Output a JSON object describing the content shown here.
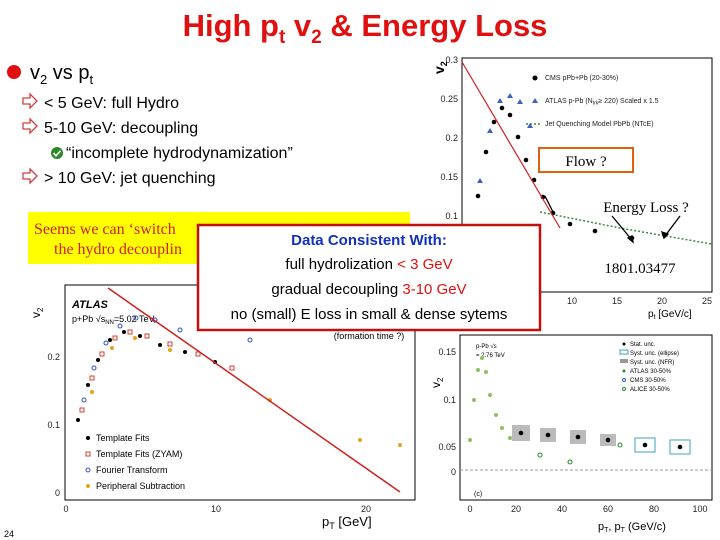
{
  "slide": {
    "title": {
      "parts": [
        "High p",
        "t",
        " v",
        "2",
        " & Energy Loss"
      ]
    },
    "bullet": {
      "parts": [
        "v",
        "2",
        " vs p",
        "t"
      ]
    },
    "subbullets": [
      "< 5 GeV: full Hydro",
      "5-10 GeV: decoupling",
      "> 10 GeV: jet quenching"
    ],
    "check_item": "“incomplete hydrodynamization”",
    "yellow_note": [
      "Seems we can ‘switch",
      "the hydro decouplin"
    ],
    "red_box": {
      "heading": "Data Consistent With:",
      "line1": {
        "text": "full hydrolization ",
        "highlight": "< 3 GeV"
      },
      "line2": {
        "text": "gradual decoupling ",
        "highlight": "3-10 GeV"
      },
      "line3": "no (small) E loss in small & dense sytems",
      "note": "(formation time ?)"
    },
    "flow_label": "Flow ?",
    "energy_loss_label": "Energy Loss ?",
    "reference": "1801.03477",
    "page_number": "24",
    "plot_top_right": {
      "y_label": "v",
      "y_label_sub": "2",
      "yticks": [
        "0.3",
        "0.25",
        "0.2",
        "0.15",
        "0.1"
      ],
      "xticks": [
        "10",
        "15",
        "20",
        "25"
      ],
      "x_label": "p",
      "x_label_sub": "t",
      "x_label_unit": " [GeV/c]",
      "legend": [
        "CMS pPb+Pb (20-30%)",
        "ATLAS p-Pb (N",
        "trk",
        "≥ 220) Scaled x 1.5",
        "Jet Quenching Model PbPb (NTcE)"
      ]
    },
    "plot_bottom_left": {
      "experiment": "ATLAS",
      "system": "p+Pb √s",
      "system_sub": "NN",
      "system_rest": "=5.02 TeV,",
      "xticks": [
        "0",
        "10",
        "20"
      ],
      "yticks": [
        "0.2",
        "0.1",
        "0"
      ],
      "x_label": "p",
      "x_label_sub": "T",
      "x_label_unit": " [GeV]",
      "y_label": "v",
      "y_label_sub": "2",
      "legend": [
        "Template Fits",
        "Template Fits (ZYAM)",
        "Fourier Transform",
        "Peripheral Subtraction"
      ]
    },
    "plot_bottom_right": {
      "y_label": "v",
      "y_label_sub": "2",
      "yticks": [
        "0.15",
        "0.1",
        "0.05",
        "0"
      ],
      "xticks": [
        "0",
        "20",
        "40",
        "60",
        "80",
        "100"
      ],
      "x_label": "p",
      "x_label_sub": "T",
      "x_label_rest": ", p",
      "x_label_sub2": "T",
      "x_label_unit": " (GeV/c)",
      "info": [
        "p-Pb √s",
        "= 2.76 TeV"
      ],
      "panel": "(c)",
      "legend": [
        "Stat. unc.",
        "Syst. unc. (ellipse)",
        "Syst. unc. (NFR)",
        "ATLAS 30-50%",
        "CMS 30-50%",
        "ALICE 30-50%"
      ]
    }
  }
}
